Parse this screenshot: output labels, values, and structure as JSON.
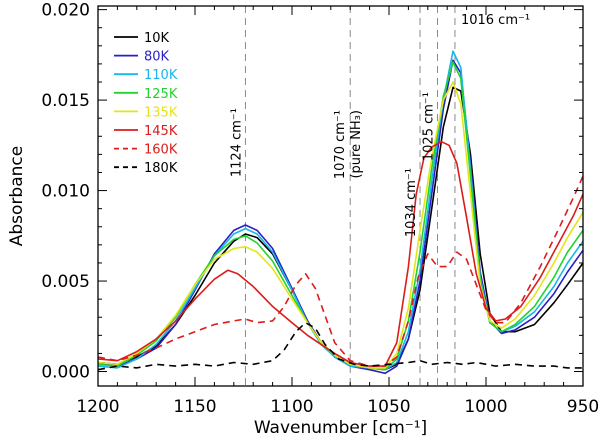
{
  "chart_data": {
    "type": "line",
    "title": "",
    "xlabel": "Wavenumber [cm⁻¹]",
    "ylabel": "Absorbance",
    "xlim": [
      1200,
      950
    ],
    "ylim": [
      -0.0008,
      0.0202
    ],
    "x_reversed": true,
    "grid": false,
    "legend_position": "top-left",
    "x_ticks": [
      1200,
      1150,
      1100,
      1050,
      1000,
      950
    ],
    "x_tick_labels": [
      "1200",
      "1150",
      "1100",
      "1050",
      "1000",
      "950"
    ],
    "y_ticks": [
      0.0,
      0.005,
      0.01,
      0.015,
      0.02
    ],
    "y_tick_labels": [
      "0.000",
      "0.005",
      "0.010",
      "0.015",
      "0.020"
    ],
    "annotations": [
      {
        "name": "ref-line-1124",
        "x": 1124,
        "lines": [
          "1124 cm⁻¹"
        ]
      },
      {
        "name": "ref-line-1070",
        "x": 1070,
        "lines": [
          "1070 cm⁻¹",
          "(pure NH₃)"
        ]
      },
      {
        "name": "ref-line-1034",
        "x": 1034,
        "lines": [
          "1034 cm⁻¹"
        ]
      },
      {
        "name": "ref-line-1025",
        "x": 1025,
        "lines": [
          "1025 cm⁻¹"
        ]
      },
      {
        "name": "ref-line-1016",
        "x": 1016,
        "lines": [
          "1016 cm⁻¹"
        ]
      }
    ],
    "series": [
      {
        "name": "10K",
        "color": "#000000",
        "dash": false,
        "points": [
          [
            1200,
            0.0005
          ],
          [
            1190,
            0.0004
          ],
          [
            1180,
            0.0008
          ],
          [
            1170,
            0.0014
          ],
          [
            1160,
            0.0026
          ],
          [
            1150,
            0.0042
          ],
          [
            1140,
            0.006
          ],
          [
            1130,
            0.0072
          ],
          [
            1124,
            0.0076
          ],
          [
            1118,
            0.0074
          ],
          [
            1110,
            0.0065
          ],
          [
            1100,
            0.0045
          ],
          [
            1092,
            0.0028
          ],
          [
            1085,
            0.0016
          ],
          [
            1078,
            0.0009
          ],
          [
            1070,
            0.0004
          ],
          [
            1060,
            0.0002
          ],
          [
            1052,
            0.0001
          ],
          [
            1046,
            0.0004
          ],
          [
            1040,
            0.0018
          ],
          [
            1034,
            0.0045
          ],
          [
            1028,
            0.009
          ],
          [
            1022,
            0.0135
          ],
          [
            1017,
            0.0157
          ],
          [
            1013,
            0.0155
          ],
          [
            1008,
            0.012
          ],
          [
            1003,
            0.0065
          ],
          [
            998,
            0.0032
          ],
          [
            992,
            0.0022
          ],
          [
            985,
            0.0022
          ],
          [
            975,
            0.0026
          ],
          [
            965,
            0.0038
          ],
          [
            958,
            0.0048
          ],
          [
            950,
            0.006
          ]
        ]
      },
      {
        "name": "80K",
        "color": "#2a1fc4",
        "dash": false,
        "points": [
          [
            1200,
            0.0005
          ],
          [
            1190,
            0.0003
          ],
          [
            1180,
            0.0007
          ],
          [
            1170,
            0.0013
          ],
          [
            1160,
            0.0026
          ],
          [
            1150,
            0.0045
          ],
          [
            1140,
            0.0065
          ],
          [
            1130,
            0.0078
          ],
          [
            1124,
            0.0081
          ],
          [
            1118,
            0.0078
          ],
          [
            1110,
            0.0068
          ],
          [
            1100,
            0.0046
          ],
          [
            1092,
            0.0028
          ],
          [
            1085,
            0.0016
          ],
          [
            1078,
            0.0008
          ],
          [
            1070,
            0.0003
          ],
          [
            1060,
            0.0001
          ],
          [
            1052,
            -0.0001
          ],
          [
            1046,
            0.0003
          ],
          [
            1040,
            0.0018
          ],
          [
            1034,
            0.005
          ],
          [
            1028,
            0.0098
          ],
          [
            1022,
            0.0145
          ],
          [
            1017,
            0.0172
          ],
          [
            1013,
            0.0165
          ],
          [
            1008,
            0.0115
          ],
          [
            1003,
            0.0055
          ],
          [
            998,
            0.0028
          ],
          [
            992,
            0.0021
          ],
          [
            985,
            0.0023
          ],
          [
            975,
            0.003
          ],
          [
            965,
            0.0043
          ],
          [
            958,
            0.0055
          ],
          [
            950,
            0.0067
          ]
        ]
      },
      {
        "name": "110K",
        "color": "#19b5e8",
        "dash": false,
        "points": [
          [
            1200,
            0.0003
          ],
          [
            1190,
            0.0002
          ],
          [
            1180,
            0.0007
          ],
          [
            1170,
            0.0015
          ],
          [
            1160,
            0.0028
          ],
          [
            1150,
            0.0046
          ],
          [
            1140,
            0.0064
          ],
          [
            1130,
            0.0076
          ],
          [
            1124,
            0.0079
          ],
          [
            1118,
            0.0076
          ],
          [
            1110,
            0.0066
          ],
          [
            1100,
            0.0045
          ],
          [
            1092,
            0.0027
          ],
          [
            1085,
            0.0015
          ],
          [
            1078,
            0.0008
          ],
          [
            1070,
            0.0003
          ],
          [
            1060,
            0.0002
          ],
          [
            1052,
            0.0001
          ],
          [
            1046,
            0.0005
          ],
          [
            1040,
            0.0022
          ],
          [
            1034,
            0.0056
          ],
          [
            1028,
            0.0105
          ],
          [
            1022,
            0.015
          ],
          [
            1017,
            0.0177
          ],
          [
            1013,
            0.0168
          ],
          [
            1008,
            0.0112
          ],
          [
            1003,
            0.0052
          ],
          [
            998,
            0.0027
          ],
          [
            992,
            0.0022
          ],
          [
            985,
            0.0025
          ],
          [
            975,
            0.0033
          ],
          [
            965,
            0.0047
          ],
          [
            958,
            0.006
          ],
          [
            950,
            0.0072
          ]
        ]
      },
      {
        "name": "125K",
        "color": "#22d22e",
        "dash": false,
        "points": [
          [
            1200,
            0.0004
          ],
          [
            1190,
            0.0003
          ],
          [
            1180,
            0.0009
          ],
          [
            1170,
            0.0017
          ],
          [
            1160,
            0.003
          ],
          [
            1150,
            0.0048
          ],
          [
            1140,
            0.0064
          ],
          [
            1130,
            0.0073
          ],
          [
            1124,
            0.0075
          ],
          [
            1118,
            0.0071
          ],
          [
            1110,
            0.0061
          ],
          [
            1100,
            0.0042
          ],
          [
            1092,
            0.0027
          ],
          [
            1085,
            0.0016
          ],
          [
            1078,
            0.0009
          ],
          [
            1070,
            0.0004
          ],
          [
            1060,
            0.0002
          ],
          [
            1052,
            0.0001
          ],
          [
            1046,
            0.0007
          ],
          [
            1040,
            0.0028
          ],
          [
            1034,
            0.0066
          ],
          [
            1028,
            0.0112
          ],
          [
            1022,
            0.0152
          ],
          [
            1017,
            0.0171
          ],
          [
            1013,
            0.0162
          ],
          [
            1008,
            0.0108
          ],
          [
            1003,
            0.005
          ],
          [
            998,
            0.0027
          ],
          [
            992,
            0.0022
          ],
          [
            985,
            0.0026
          ],
          [
            975,
            0.0036
          ],
          [
            965,
            0.0052
          ],
          [
            958,
            0.0066
          ],
          [
            950,
            0.0078
          ]
        ]
      },
      {
        "name": "135K",
        "color": "#e4e41a",
        "dash": false,
        "points": [
          [
            1200,
            0.0005
          ],
          [
            1190,
            0.0004
          ],
          [
            1180,
            0.001
          ],
          [
            1170,
            0.0018
          ],
          [
            1160,
            0.0031
          ],
          [
            1150,
            0.0048
          ],
          [
            1140,
            0.0062
          ],
          [
            1130,
            0.0068
          ],
          [
            1124,
            0.0069
          ],
          [
            1118,
            0.0066
          ],
          [
            1110,
            0.0057
          ],
          [
            1100,
            0.004
          ],
          [
            1092,
            0.0027
          ],
          [
            1085,
            0.0016
          ],
          [
            1078,
            0.0009
          ],
          [
            1070,
            0.0004
          ],
          [
            1060,
            0.0002
          ],
          [
            1052,
            0.0002
          ],
          [
            1046,
            0.001
          ],
          [
            1040,
            0.0035
          ],
          [
            1034,
            0.0078
          ],
          [
            1028,
            0.0118
          ],
          [
            1022,
            0.015
          ],
          [
            1017,
            0.016
          ],
          [
            1013,
            0.0148
          ],
          [
            1008,
            0.0098
          ],
          [
            1003,
            0.0048
          ],
          [
            998,
            0.0028
          ],
          [
            992,
            0.0024
          ],
          [
            985,
            0.0029
          ],
          [
            975,
            0.0042
          ],
          [
            965,
            0.006
          ],
          [
            958,
            0.0074
          ],
          [
            950,
            0.0088
          ]
        ]
      },
      {
        "name": "145K",
        "color": "#dc1c1c",
        "dash": false,
        "points": [
          [
            1200,
            0.0007
          ],
          [
            1190,
            0.0006
          ],
          [
            1180,
            0.0011
          ],
          [
            1170,
            0.0018
          ],
          [
            1160,
            0.0028
          ],
          [
            1150,
            0.004
          ],
          [
            1140,
            0.0051
          ],
          [
            1133,
            0.0056
          ],
          [
            1128,
            0.0054
          ],
          [
            1120,
            0.0047
          ],
          [
            1110,
            0.0036
          ],
          [
            1100,
            0.0027
          ],
          [
            1092,
            0.002
          ],
          [
            1085,
            0.0015
          ],
          [
            1078,
            0.001
          ],
          [
            1070,
            0.0005
          ],
          [
            1060,
            0.0003
          ],
          [
            1052,
            0.0003
          ],
          [
            1046,
            0.0016
          ],
          [
            1040,
            0.0058
          ],
          [
            1036,
            0.0098
          ],
          [
            1032,
            0.0118
          ],
          [
            1028,
            0.0124
          ],
          [
            1023,
            0.0127
          ],
          [
            1019,
            0.0125
          ],
          [
            1015,
            0.0115
          ],
          [
            1010,
            0.0085
          ],
          [
            1005,
            0.0054
          ],
          [
            1000,
            0.0035
          ],
          [
            995,
            0.0028
          ],
          [
            990,
            0.0029
          ],
          [
            982,
            0.0036
          ],
          [
            972,
            0.0052
          ],
          [
            962,
            0.0072
          ],
          [
            955,
            0.0086
          ],
          [
            950,
            0.0098
          ]
        ]
      },
      {
        "name": "160K",
        "color": "#dc1c1c",
        "dash": true,
        "points": [
          [
            1200,
            0.0008
          ],
          [
            1190,
            0.0006
          ],
          [
            1180,
            0.0009
          ],
          [
            1170,
            0.0013
          ],
          [
            1160,
            0.0018
          ],
          [
            1150,
            0.0022
          ],
          [
            1140,
            0.0026
          ],
          [
            1130,
            0.0028
          ],
          [
            1124,
            0.0029
          ],
          [
            1118,
            0.0027
          ],
          [
            1110,
            0.0028
          ],
          [
            1104,
            0.0036
          ],
          [
            1098,
            0.0048
          ],
          [
            1093,
            0.0054
          ],
          [
            1088,
            0.0046
          ],
          [
            1083,
            0.0031
          ],
          [
            1078,
            0.0016
          ],
          [
            1070,
            0.0006
          ],
          [
            1060,
            0.0003
          ],
          [
            1052,
            0.0003
          ],
          [
            1046,
            0.0008
          ],
          [
            1040,
            0.0028
          ],
          [
            1035,
            0.0052
          ],
          [
            1030,
            0.0065
          ],
          [
            1025,
            0.0058
          ],
          [
            1020,
            0.0058
          ],
          [
            1015,
            0.0066
          ],
          [
            1010,
            0.0062
          ],
          [
            1005,
            0.0048
          ],
          [
            1000,
            0.0034
          ],
          [
            995,
            0.0027
          ],
          [
            990,
            0.0027
          ],
          [
            982,
            0.0038
          ],
          [
            972,
            0.0058
          ],
          [
            962,
            0.008
          ],
          [
            955,
            0.0096
          ],
          [
            950,
            0.0108
          ]
        ]
      },
      {
        "name": "180K",
        "color": "#000000",
        "dash": true,
        "points": [
          [
            1200,
            0.0001
          ],
          [
            1190,
            0.0003
          ],
          [
            1180,
            0.0002
          ],
          [
            1170,
            0.0004
          ],
          [
            1160,
            0.0003
          ],
          [
            1150,
            0.0004
          ],
          [
            1140,
            0.0003
          ],
          [
            1130,
            0.0005
          ],
          [
            1120,
            0.0004
          ],
          [
            1110,
            0.0006
          ],
          [
            1104,
            0.0012
          ],
          [
            1098,
            0.0022
          ],
          [
            1093,
            0.0027
          ],
          [
            1088,
            0.0024
          ],
          [
            1083,
            0.0015
          ],
          [
            1076,
            0.0007
          ],
          [
            1068,
            0.0004
          ],
          [
            1060,
            0.0003
          ],
          [
            1050,
            0.0004
          ],
          [
            1040,
            0.0005
          ],
          [
            1034,
            0.0006
          ],
          [
            1028,
            0.0004
          ],
          [
            1020,
            0.0005
          ],
          [
            1012,
            0.0004
          ],
          [
            1005,
            0.0005
          ],
          [
            995,
            0.0003
          ],
          [
            985,
            0.0004
          ],
          [
            975,
            0.0003
          ],
          [
            965,
            0.0003
          ],
          [
            958,
            0.0002
          ],
          [
            950,
            0.0002
          ]
        ]
      }
    ]
  }
}
